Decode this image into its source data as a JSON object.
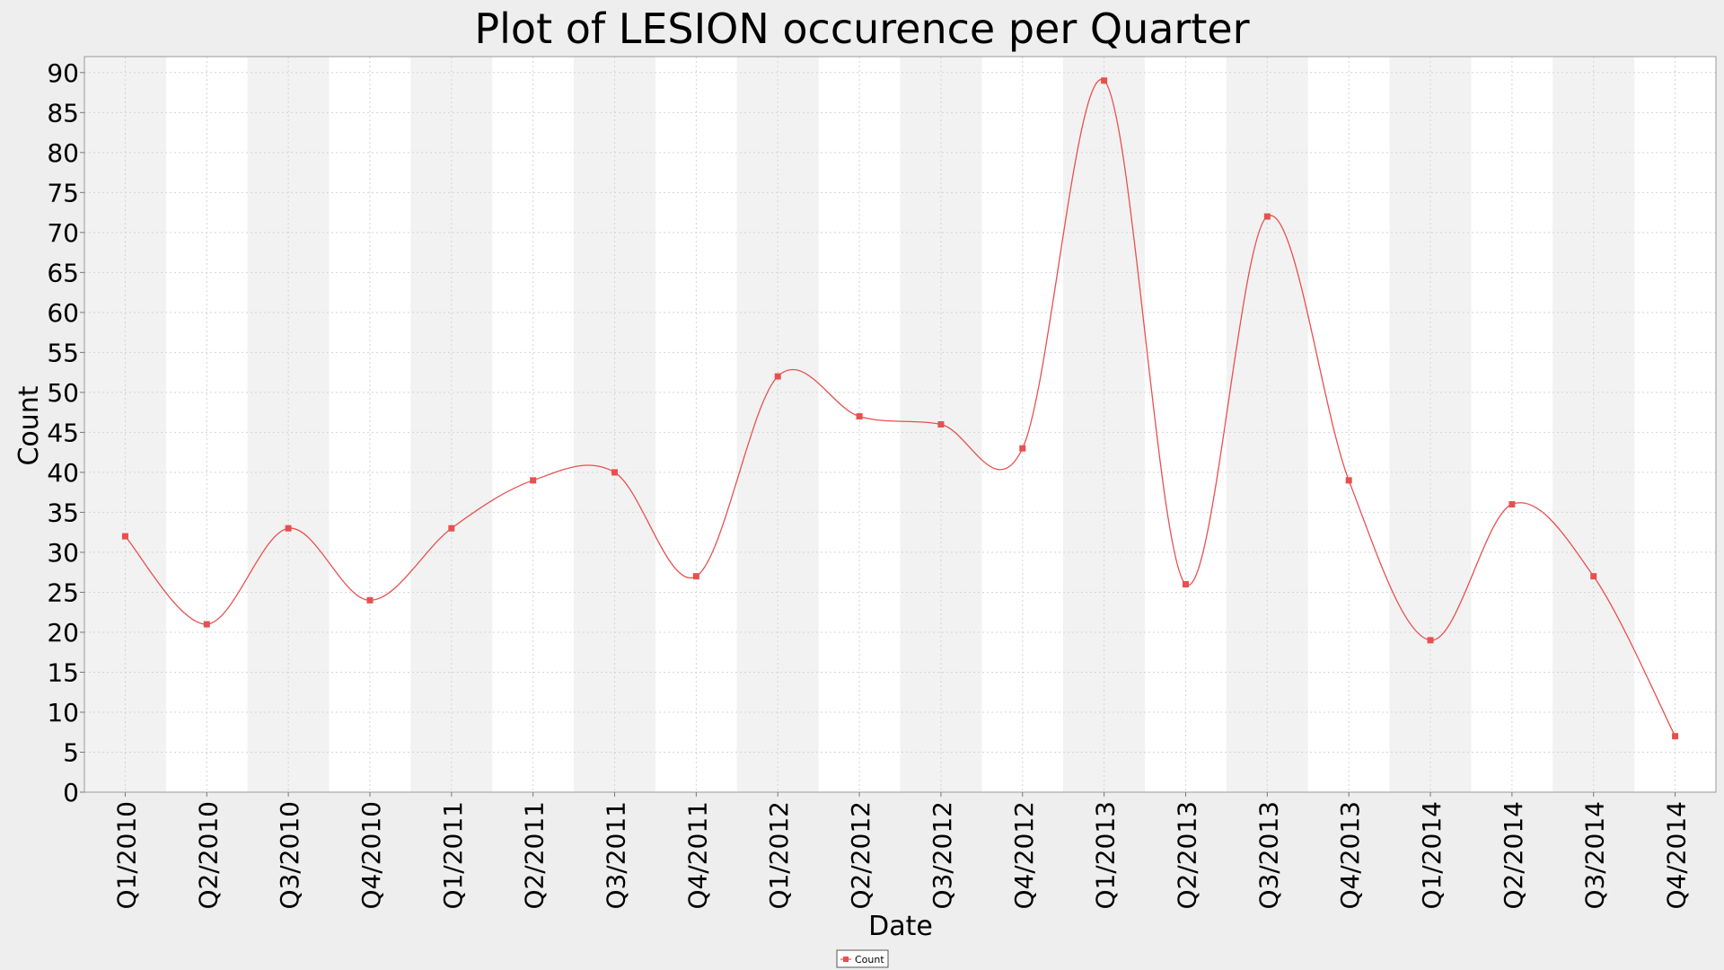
{
  "chart_data": {
    "type": "line",
    "title": "Plot of LESION occurence per Quarter",
    "xlabel": "Date",
    "ylabel": "Count",
    "ylim": [
      0,
      92
    ],
    "y_ticks": [
      0,
      5,
      10,
      15,
      20,
      25,
      30,
      35,
      40,
      45,
      50,
      55,
      60,
      65,
      70,
      75,
      80,
      85,
      90
    ],
    "categories": [
      "Q1/2010",
      "Q2/2010",
      "Q3/2010",
      "Q4/2010",
      "Q1/2011",
      "Q2/2011",
      "Q3/2011",
      "Q4/2011",
      "Q1/2012",
      "Q2/2012",
      "Q3/2012",
      "Q4/2012",
      "Q1/2013",
      "Q2/2013",
      "Q3/2013",
      "Q4/2013",
      "Q1/2014",
      "Q2/2014",
      "Q3/2014",
      "Q4/2014"
    ],
    "series": [
      {
        "name": "Count",
        "color": "#e8504f",
        "values": [
          32,
          21,
          33,
          24,
          33,
          39,
          40,
          27,
          52,
          47,
          46,
          43,
          89,
          26,
          72,
          39,
          19,
          36,
          27,
          7
        ]
      }
    ],
    "grid": true,
    "legend": "bottom-center",
    "band_colors": [
      "#f2f2f2",
      "#ffffff"
    ]
  }
}
